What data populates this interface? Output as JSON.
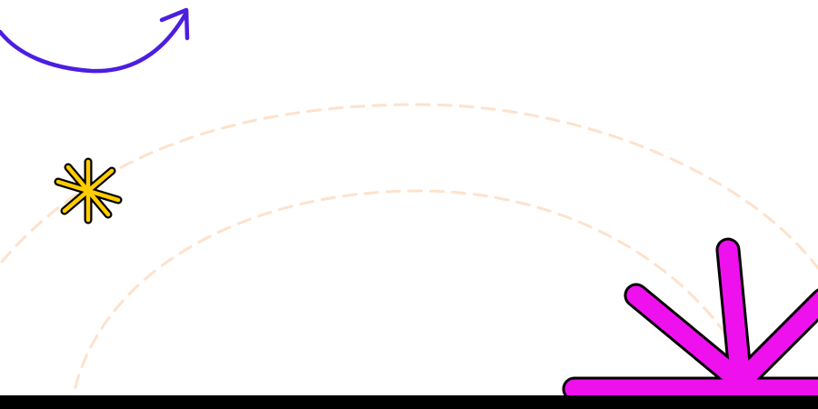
{
  "colors": {
    "background": "#ffffff",
    "arc_dashed": "#fde2cc",
    "arrow": "#4b1ee0",
    "sparkle_small_fill": "#ffcc00",
    "sparkle_large_fill": "#ee11ee",
    "outline": "#000000",
    "bottom_bar": "#000000"
  },
  "decorations": {
    "arrow": {
      "icon": "curved-arrow-icon",
      "direction": "up-right"
    },
    "sparkle_small": {
      "icon": "asterisk-sparkle-icon",
      "color_name": "yellow"
    },
    "sparkle_large": {
      "icon": "asterisk-sparkle-icon",
      "color_name": "magenta"
    },
    "arcs": {
      "count": 2,
      "style": "dashed"
    }
  }
}
